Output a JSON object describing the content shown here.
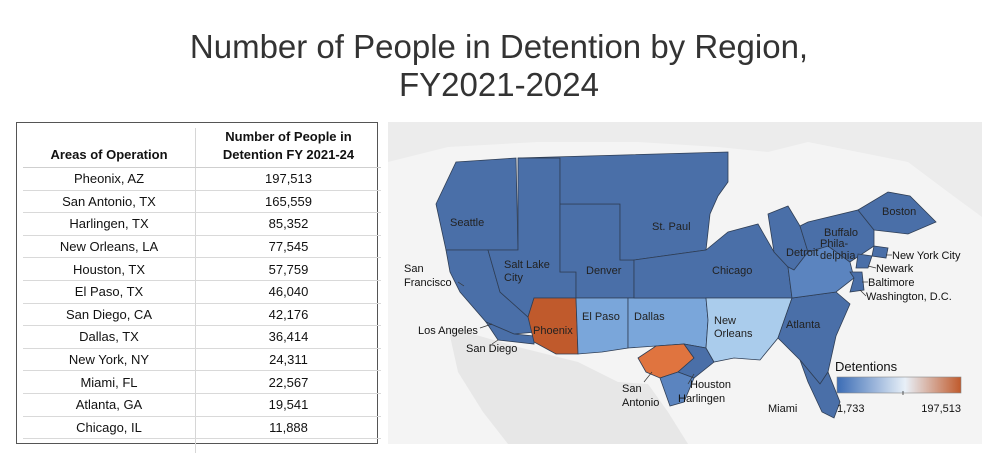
{
  "title_lines": [
    "Number of People in Detention by Region,",
    "FY2021-2024"
  ],
  "chart_data": [
    {
      "type": "table",
      "headers": [
        "Areas of Operation",
        "Number of People in Detention FY 2021-24"
      ],
      "rows": [
        {
          "area": "Pheonix, AZ",
          "value": "197,513"
        },
        {
          "area": "San Antonio, TX",
          "value": "165,559"
        },
        {
          "area": "Harlingen, TX",
          "value": "85,352"
        },
        {
          "area": "New Orleans, LA",
          "value": "77,545"
        },
        {
          "area": "Houston, TX",
          "value": "57,759"
        },
        {
          "area": "El Paso, TX",
          "value": "46,040"
        },
        {
          "area": "San Diego, CA",
          "value": "42,176"
        },
        {
          "area": "Dallas, TX",
          "value": "36,414"
        },
        {
          "area": "New York, NY",
          "value": "24,311"
        },
        {
          "area": "Miami, FL",
          "value": "22,567"
        },
        {
          "area": "Atlanta, GA",
          "value": "19,541"
        },
        {
          "area": "Chicago, IL",
          "value": "11,888"
        }
      ]
    },
    {
      "type": "heatmap",
      "map": "United States ICE areas of responsibility",
      "legend": {
        "title": "Detentions",
        "min": 1733,
        "max": 197513,
        "min_label": "1,733",
        "max_label": "197,513",
        "placement": "bottom-right"
      },
      "colors": {
        "low": "#3b6cb5",
        "mid": "#e8f0f8",
        "high": "#c05a2c",
        "land": "#e4e4e4",
        "water": "#f6f6f6"
      },
      "regions": [
        {
          "label": "Seattle",
          "shade": "base"
        },
        {
          "label": "Salt Lake\nCity",
          "shade": "base"
        },
        {
          "label": "Denver",
          "shade": "base"
        },
        {
          "label": "St. Paul",
          "shade": "base"
        },
        {
          "label": "Chicago",
          "shade": "base"
        },
        {
          "label": "Detroit",
          "shade": "base"
        },
        {
          "label": "Buffalo",
          "shade": "base"
        },
        {
          "label": "Boston",
          "shade": "base"
        },
        {
          "label": "Phila-\ndelphia",
          "shade": "mid"
        },
        {
          "label": "Atlanta",
          "shade": "base"
        },
        {
          "label": "Phoenix",
          "shade": "highest"
        },
        {
          "label": "El Paso",
          "shade": "light"
        },
        {
          "label": "Dallas",
          "shade": "light"
        },
        {
          "label": "New\nOrleans",
          "shade": "pale"
        }
      ],
      "callouts": [
        "San\nFrancisco",
        "Los Angeles",
        "San Diego",
        "San\nAntonio",
        "Houston",
        "Harlingen",
        "Miami",
        "New York City",
        "Newark",
        "Baltimore",
        "Washington, D.C."
      ]
    }
  ]
}
